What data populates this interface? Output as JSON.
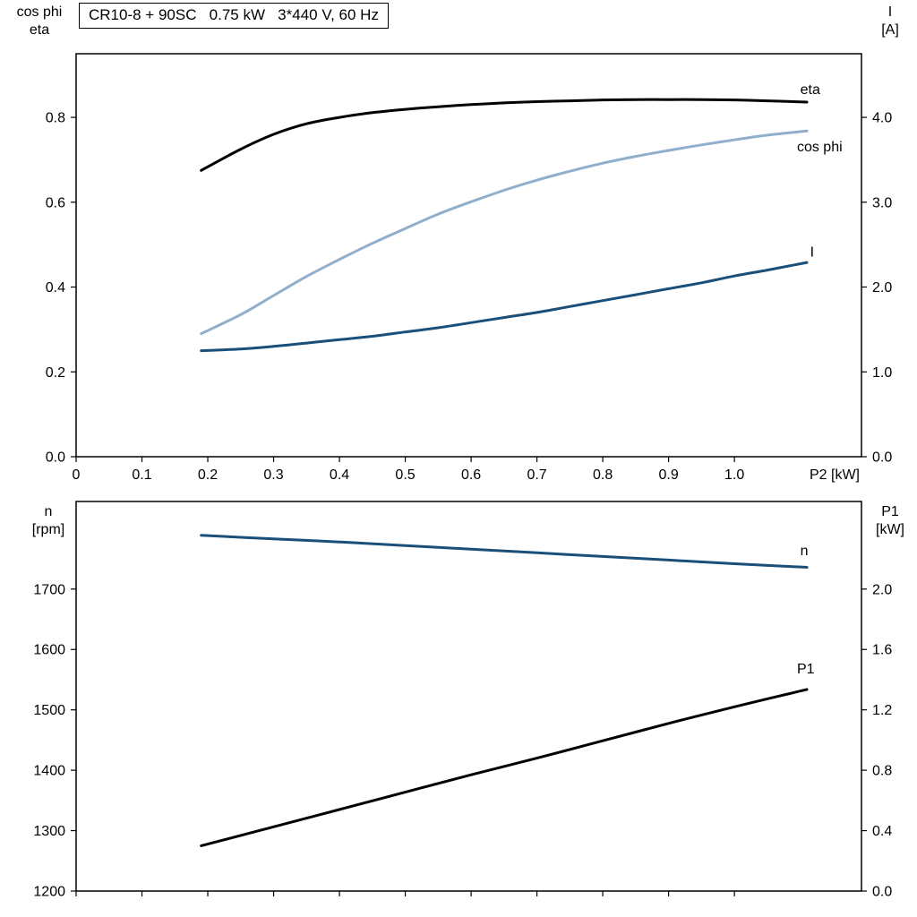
{
  "title": "CR10-8 + 90SC   0.75 kW   3*440 V, 60 Hz",
  "colors": {
    "black": "#000000",
    "dark_blue": "#1a4f7a",
    "light_blue": "#8fafcc"
  },
  "chart_data": [
    {
      "type": "line",
      "id": "upper",
      "x_axis": {
        "label": "P2 [kW]",
        "min": 0,
        "max": 1.193,
        "ticks": [
          0,
          0.1,
          0.2,
          0.3,
          0.4,
          0.5,
          0.6,
          0.7,
          0.8,
          0.9,
          1.0
        ],
        "tick_labels": [
          "0",
          "0.1",
          "0.2",
          "0.3",
          "0.4",
          "0.5",
          "0.6",
          "0.7",
          "0.8",
          "0.9",
          "1.0"
        ]
      },
      "left_axis": {
        "label_lines": [
          "cos phi",
          "eta"
        ],
        "min": 0,
        "max": 0.95,
        "ticks": [
          0,
          0.2,
          0.4,
          0.6,
          0.8
        ],
        "tick_labels": [
          "0.0",
          "0.2",
          "0.4",
          "0.6",
          "0.8"
        ]
      },
      "right_axis": {
        "label_lines": [
          "I",
          "[A]"
        ],
        "min": 0,
        "max": 4.75,
        "ticks": [
          0,
          1,
          2,
          3,
          4
        ],
        "tick_labels": [
          "0.0",
          "1.0",
          "2.0",
          "3.0",
          "4.0"
        ]
      },
      "grid": false,
      "series": [
        {
          "name": "eta",
          "axis": "left",
          "color": "#000000",
          "label": "eta",
          "label_pos": [
            1.1,
            0.855
          ],
          "points": [
            [
              0.19,
              0.675
            ],
            [
              0.25,
              0.725
            ],
            [
              0.3,
              0.76
            ],
            [
              0.35,
              0.785
            ],
            [
              0.4,
              0.8
            ],
            [
              0.45,
              0.811
            ],
            [
              0.5,
              0.819
            ],
            [
              0.55,
              0.825
            ],
            [
              0.6,
              0.83
            ],
            [
              0.65,
              0.834
            ],
            [
              0.7,
              0.837
            ],
            [
              0.75,
              0.839
            ],
            [
              0.8,
              0.841
            ],
            [
              0.85,
              0.842
            ],
            [
              0.9,
              0.842
            ],
            [
              0.95,
              0.842
            ],
            [
              1.0,
              0.841
            ],
            [
              1.05,
              0.839
            ],
            [
              1.11,
              0.836
            ]
          ]
        },
        {
          "name": "cos-phi",
          "axis": "left",
          "color": "#8fafcc",
          "label": "cos phi",
          "label_pos": [
            1.095,
            0.72
          ],
          "points": [
            [
              0.19,
              0.29
            ],
            [
              0.25,
              0.335
            ],
            [
              0.3,
              0.38
            ],
            [
              0.35,
              0.425
            ],
            [
              0.4,
              0.465
            ],
            [
              0.45,
              0.503
            ],
            [
              0.5,
              0.538
            ],
            [
              0.55,
              0.572
            ],
            [
              0.6,
              0.601
            ],
            [
              0.65,
              0.628
            ],
            [
              0.7,
              0.652
            ],
            [
              0.75,
              0.673
            ],
            [
              0.8,
              0.692
            ],
            [
              0.85,
              0.708
            ],
            [
              0.9,
              0.722
            ],
            [
              0.95,
              0.735
            ],
            [
              1.0,
              0.747
            ],
            [
              1.05,
              0.758
            ],
            [
              1.11,
              0.768
            ]
          ]
        },
        {
          "name": "current",
          "axis": "right",
          "color": "#1a4f7a",
          "label": "I",
          "label_pos": [
            1.115,
            2.36
          ],
          "points": [
            [
              0.19,
              1.25
            ],
            [
              0.25,
              1.27
            ],
            [
              0.3,
              1.3
            ],
            [
              0.35,
              1.34
            ],
            [
              0.4,
              1.38
            ],
            [
              0.45,
              1.42
            ],
            [
              0.5,
              1.47
            ],
            [
              0.55,
              1.52
            ],
            [
              0.6,
              1.58
            ],
            [
              0.65,
              1.64
            ],
            [
              0.7,
              1.7
            ],
            [
              0.75,
              1.77
            ],
            [
              0.8,
              1.84
            ],
            [
              0.85,
              1.91
            ],
            [
              0.9,
              1.98
            ],
            [
              0.95,
              2.05
            ],
            [
              1.0,
              2.13
            ],
            [
              1.05,
              2.2
            ],
            [
              1.11,
              2.29
            ]
          ]
        }
      ]
    },
    {
      "type": "line",
      "id": "lower",
      "x_axis": {
        "label": "",
        "min": 0,
        "max": 1.193,
        "ticks": [
          0,
          0.1,
          0.2,
          0.3,
          0.4,
          0.5,
          0.6,
          0.7,
          0.8,
          0.9,
          1.0
        ],
        "tick_labels": null
      },
      "left_axis": {
        "label_lines": [
          "n",
          "[rpm]"
        ],
        "min": 1200,
        "max": 1845,
        "ticks": [
          1200,
          1300,
          1400,
          1500,
          1600,
          1700
        ],
        "tick_labels": [
          "1200",
          "1300",
          "1400",
          "1500",
          "1600",
          "1700"
        ]
      },
      "right_axis": {
        "label_lines": [
          "P1",
          "[kW]"
        ],
        "min": 0,
        "max": 2.58,
        "ticks": [
          0,
          0.4,
          0.8,
          1.2,
          1.6,
          2.0
        ],
        "tick_labels": [
          "0.0",
          "0.4",
          "0.8",
          "1.2",
          "1.6",
          "2.0"
        ]
      },
      "grid": false,
      "series": [
        {
          "name": "speed",
          "axis": "left",
          "color": "#1a4f7a",
          "label": "n",
          "label_pos": [
            1.1,
            1756
          ],
          "points": [
            [
              0.19,
              1789
            ],
            [
              0.3,
              1783
            ],
            [
              0.4,
              1778
            ],
            [
              0.5,
              1772
            ],
            [
              0.6,
              1766
            ],
            [
              0.7,
              1760
            ],
            [
              0.8,
              1754
            ],
            [
              0.9,
              1748
            ],
            [
              1.0,
              1742
            ],
            [
              1.11,
              1736
            ]
          ]
        },
        {
          "name": "input-power",
          "axis": "right",
          "color": "#000000",
          "label": "P1",
          "label_pos": [
            1.095,
            1.44
          ],
          "points": [
            [
              0.19,
              0.3
            ],
            [
              0.3,
              0.425
            ],
            [
              0.4,
              0.54
            ],
            [
              0.5,
              0.655
            ],
            [
              0.6,
              0.77
            ],
            [
              0.7,
              0.88
            ],
            [
              0.8,
              0.995
            ],
            [
              0.9,
              1.11
            ],
            [
              1.0,
              1.22
            ],
            [
              1.11,
              1.335
            ]
          ]
        }
      ]
    }
  ]
}
